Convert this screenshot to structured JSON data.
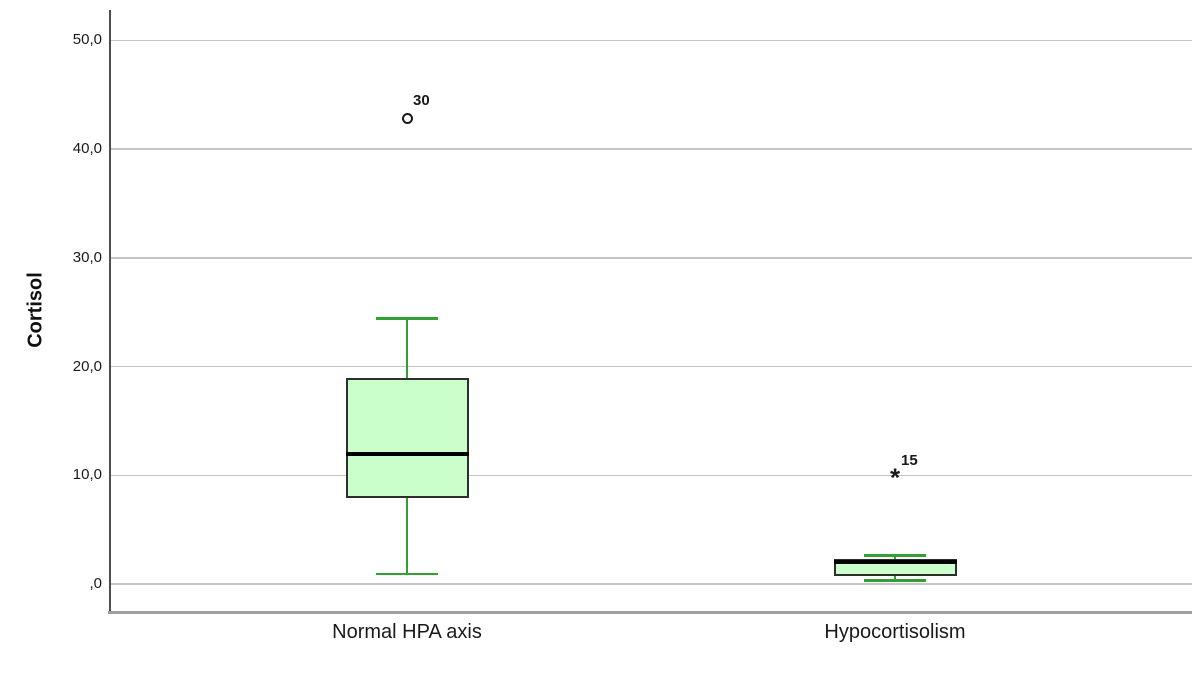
{
  "chart_data": {
    "type": "boxplot",
    "title": "",
    "ylabel": "Cortisol",
    "xlabel": "",
    "ylim": [
      -2.7,
      52.8
    ],
    "grid": "horizontal",
    "yticks": {
      "values": [
        0,
        10,
        20,
        30,
        40,
        50
      ],
      "labels": [
        ",0",
        "10,0",
        "20,0",
        "30,0",
        "40,0",
        "50,0"
      ]
    },
    "categories": [
      "Normal HPA axis",
      "Hypocortisolism"
    ],
    "series": [
      {
        "category": "Normal HPA axis",
        "whisker_low": 0.9,
        "q1": 7.9,
        "median": 12.0,
        "q3": 18.9,
        "whisker_high": 24.4,
        "outliers": [
          {
            "value": 42.8,
            "label": "30",
            "marker": "circle"
          }
        ]
      },
      {
        "category": "Hypocortisolism",
        "whisker_low": 0.3,
        "q1": 0.7,
        "median": 2.0,
        "q3": 2.3,
        "whisker_high": 2.6,
        "outliers": [
          {
            "value": 10.0,
            "label": "15",
            "marker": "asterisk"
          }
        ]
      }
    ],
    "colors": {
      "box_fill": "#cafeca",
      "box_border": "#2e2e2e",
      "median": "#000000",
      "whisker": "#32a032",
      "gridline": "#c5c5c5",
      "axis_line": "#4f4f4f",
      "baseline": "#9e9e9e",
      "text": "#1a1a1a"
    }
  }
}
